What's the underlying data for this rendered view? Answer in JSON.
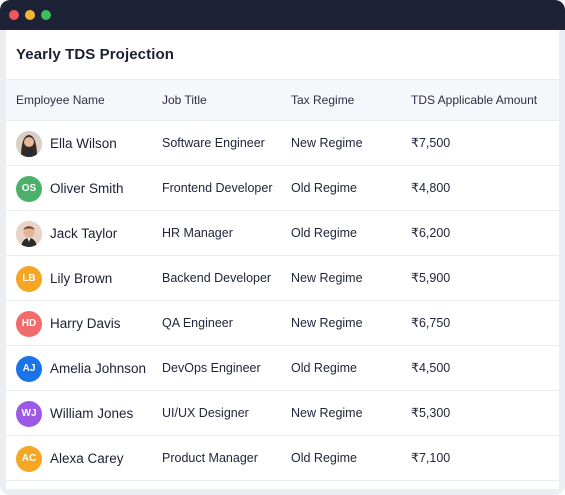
{
  "window": {
    "controls": [
      "close",
      "minimize",
      "maximize"
    ]
  },
  "card": {
    "title": "Yearly TDS Projection"
  },
  "table": {
    "headers": [
      "Employee Name",
      "Job Title",
      "Tax Regime",
      "TDS Applicable Amount"
    ],
    "rows": [
      {
        "name": "Ella Wilson",
        "title": "Software Engineer",
        "regime": "New Regime",
        "amount": "₹7,500",
        "avatar": {
          "type": "photo",
          "variant": "woman"
        }
      },
      {
        "name": "Oliver Smith",
        "title": "Frontend Developer",
        "regime": "Old Regime",
        "amount": "₹4,800",
        "avatar": {
          "type": "initials",
          "initials": "OS",
          "color": "#4caf6a"
        }
      },
      {
        "name": "Jack Taylor",
        "title": "HR Manager",
        "regime": "Old Regime",
        "amount": "₹6,200",
        "avatar": {
          "type": "photo",
          "variant": "man"
        }
      },
      {
        "name": "Lily Brown",
        "title": "Backend Developer",
        "regime": "New Regime",
        "amount": "₹5,900",
        "avatar": {
          "type": "initials",
          "initials": "LB",
          "color": "#f5a623"
        }
      },
      {
        "name": "Harry Davis",
        "title": "QA Engineer",
        "regime": "New Regime",
        "amount": "₹6,750",
        "avatar": {
          "type": "initials",
          "initials": "HD",
          "color": "#f26b6b"
        }
      },
      {
        "name": "Amelia Johnson",
        "title": "DevOps Engineer",
        "regime": "Old Regime",
        "amount": "₹4,500",
        "avatar": {
          "type": "initials",
          "initials": "AJ",
          "color": "#1a73e8"
        }
      },
      {
        "name": "William Jones",
        "title": "UI/UX Designer",
        "regime": "New Regime",
        "amount": "₹5,300",
        "avatar": {
          "type": "initials",
          "initials": "WJ",
          "color": "#9b59e6"
        }
      },
      {
        "name": "Alexa Carey",
        "title": "Product Manager",
        "regime": "Old Regime",
        "amount": "₹7,100",
        "avatar": {
          "type": "initials",
          "initials": "AC",
          "color": "#f5a623"
        }
      }
    ]
  }
}
